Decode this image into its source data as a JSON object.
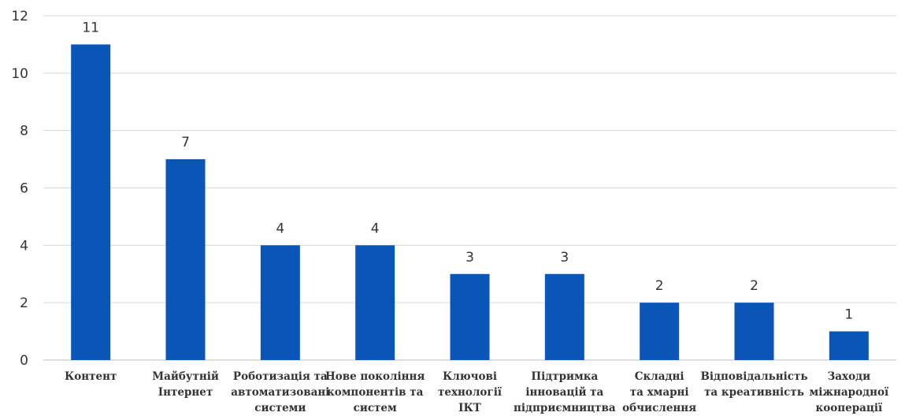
{
  "chart_data": {
    "type": "bar",
    "title": "",
    "xlabel": "",
    "ylabel": "",
    "ylim": [
      0,
      12
    ],
    "yticks": [
      0,
      2,
      4,
      6,
      8,
      10,
      12
    ],
    "grid": true,
    "legend": "none",
    "bar_color": "#0a55b8",
    "categories": [
      [
        "Контент"
      ],
      [
        "Майбутній",
        "Інтернет"
      ],
      [
        "Роботизація та",
        "автоматизовані",
        "системи"
      ],
      [
        "Нове покоління",
        "компонентів та",
        "систем"
      ],
      [
        "Ключові",
        "технології",
        "ІКТ"
      ],
      [
        "Підтримка",
        "інновацій та",
        "підприємництва"
      ],
      [
        "Складні",
        "та хмарні",
        "обчислення"
      ],
      [
        "Відповідальність",
        "та креативність"
      ],
      [
        "Заходи",
        "міжнародної",
        "кооперації"
      ]
    ],
    "values": [
      11,
      7,
      4,
      4,
      3,
      3,
      2,
      2,
      1
    ]
  }
}
